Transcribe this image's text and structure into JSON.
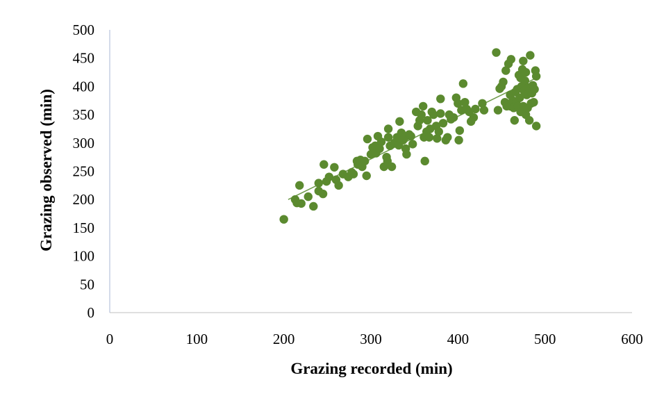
{
  "chart_data": {
    "type": "scatter",
    "xlabel": "Grazing recorded (min)",
    "ylabel": "Grazing observed (min)",
    "xlim": [
      0,
      600
    ],
    "ylim": [
      0,
      500
    ],
    "x_ticks": [
      "0",
      "100",
      "200",
      "300",
      "400",
      "500",
      "600"
    ],
    "y_ticks": [
      "0",
      "50",
      "100",
      "150",
      "200",
      "250",
      "300",
      "350",
      "400",
      "450",
      "500"
    ],
    "grid": false,
    "legend": "none",
    "marker_color": "#5b8a2f",
    "trendline": {
      "type": "linear",
      "color": "#6e9a4a",
      "x_range": [
        205,
        490
      ],
      "y_range": [
        200,
        415
      ]
    },
    "series": [
      {
        "points": [
          [
            200,
            165
          ],
          [
            213,
            200
          ],
          [
            215,
            194
          ],
          [
            218,
            225
          ],
          [
            220,
            193
          ],
          [
            228,
            205
          ],
          [
            234,
            188
          ],
          [
            240,
            215
          ],
          [
            240,
            229
          ],
          [
            245,
            210
          ],
          [
            246,
            262
          ],
          [
            249,
            232
          ],
          [
            252,
            240
          ],
          [
            258,
            257
          ],
          [
            260,
            235
          ],
          [
            263,
            225
          ],
          [
            268,
            245
          ],
          [
            274,
            240
          ],
          [
            278,
            248
          ],
          [
            280,
            245
          ],
          [
            284,
            268
          ],
          [
            285,
            262
          ],
          [
            288,
            270
          ],
          [
            290,
            258
          ],
          [
            293,
            268
          ],
          [
            295,
            242
          ],
          [
            296,
            307
          ],
          [
            300,
            280
          ],
          [
            302,
            292
          ],
          [
            305,
            295
          ],
          [
            306,
            282
          ],
          [
            308,
            312
          ],
          [
            310,
            290
          ],
          [
            312,
            302
          ],
          [
            315,
            258
          ],
          [
            318,
            275
          ],
          [
            319,
            268
          ],
          [
            320,
            325
          ],
          [
            320,
            310
          ],
          [
            322,
            295
          ],
          [
            324,
            258
          ],
          [
            327,
            300
          ],
          [
            330,
            310
          ],
          [
            332,
            296
          ],
          [
            333,
            338
          ],
          [
            335,
            318
          ],
          [
            337,
            305
          ],
          [
            339,
            310
          ],
          [
            340,
            290
          ],
          [
            341,
            280
          ],
          [
            344,
            315
          ],
          [
            346,
            312
          ],
          [
            348,
            298
          ],
          [
            352,
            355
          ],
          [
            354,
            330
          ],
          [
            356,
            340
          ],
          [
            358,
            350
          ],
          [
            360,
            365
          ],
          [
            361,
            310
          ],
          [
            362,
            268
          ],
          [
            364,
            320
          ],
          [
            365,
            340
          ],
          [
            367,
            310
          ],
          [
            368,
            325
          ],
          [
            370,
            355
          ],
          [
            372,
            350
          ],
          [
            375,
            330
          ],
          [
            376,
            308
          ],
          [
            378,
            320
          ],
          [
            380,
            378
          ],
          [
            380,
            352
          ],
          [
            383,
            335
          ],
          [
            386,
            305
          ],
          [
            388,
            310
          ],
          [
            390,
            350
          ],
          [
            392,
            342
          ],
          [
            395,
            345
          ],
          [
            398,
            380
          ],
          [
            400,
            370
          ],
          [
            401,
            305
          ],
          [
            402,
            322
          ],
          [
            404,
            358
          ],
          [
            406,
            405
          ],
          [
            408,
            372
          ],
          [
            410,
            360
          ],
          [
            413,
            355
          ],
          [
            415,
            338
          ],
          [
            418,
            345
          ],
          [
            420,
            360
          ],
          [
            428,
            370
          ],
          [
            430,
            358
          ],
          [
            444,
            460
          ],
          [
            446,
            358
          ],
          [
            448,
            396
          ],
          [
            450,
            400
          ],
          [
            452,
            408
          ],
          [
            454,
            372
          ],
          [
            455,
            428
          ],
          [
            456,
            365
          ],
          [
            458,
            440
          ],
          [
            460,
            385
          ],
          [
            460,
            365
          ],
          [
            461,
            448
          ],
          [
            463,
            375
          ],
          [
            464,
            362
          ],
          [
            465,
            340
          ],
          [
            466,
            390
          ],
          [
            467,
            372
          ],
          [
            468,
            395
          ],
          [
            469,
            365
          ],
          [
            470,
            420
          ],
          [
            471,
            380
          ],
          [
            472,
            415
          ],
          [
            472,
            355
          ],
          [
            473,
            400
          ],
          [
            474,
            430
          ],
          [
            475,
            445
          ],
          [
            475,
            365
          ],
          [
            476,
            392
          ],
          [
            477,
            410
          ],
          [
            478,
            350
          ],
          [
            478,
            425
          ],
          [
            479,
            385
          ],
          [
            480,
            362
          ],
          [
            481,
            398
          ],
          [
            482,
            340
          ],
          [
            483,
            455
          ],
          [
            484,
            370
          ],
          [
            485,
            388
          ],
          [
            486,
            402
          ],
          [
            488,
            395
          ],
          [
            489,
            428
          ],
          [
            490,
            418
          ],
          [
            490,
            330
          ],
          [
            487,
            372
          ]
        ]
      }
    ]
  }
}
